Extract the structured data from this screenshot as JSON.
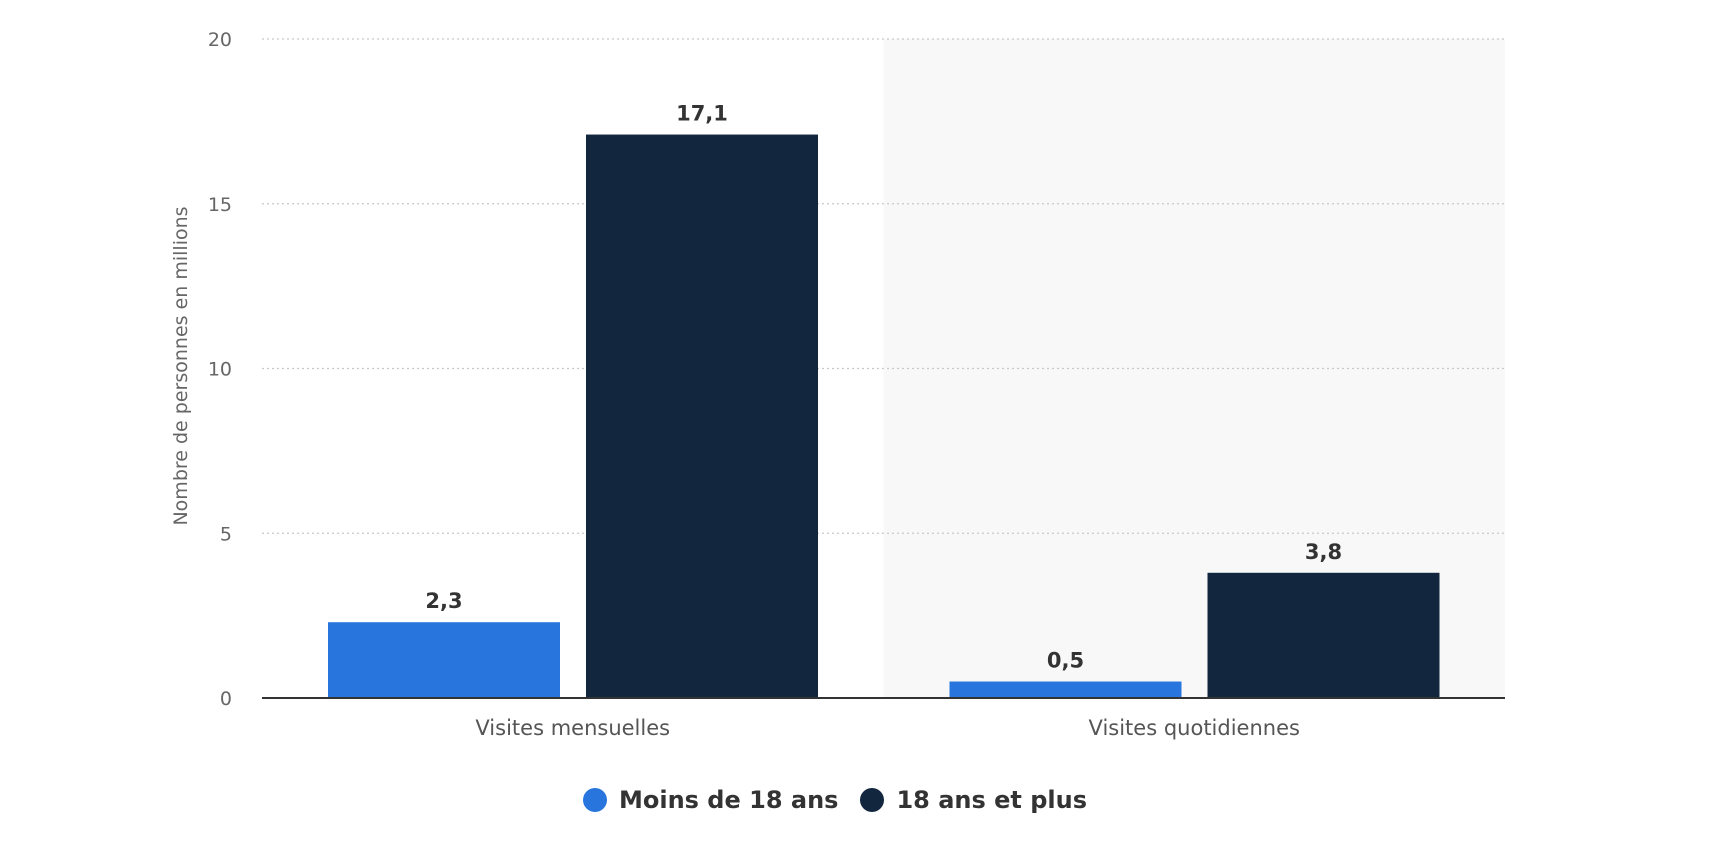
{
  "chart_data": {
    "type": "bar",
    "categories": [
      "Visites mensuelles",
      "Visites quotidiennes"
    ],
    "series": [
      {
        "name": "Moins de 18 ans",
        "values": [
          2.3,
          0.5
        ],
        "labels": [
          "2,3",
          "0,5"
        ],
        "color": "#2876dd"
      },
      {
        "name": "18 ans et plus",
        "values": [
          17.1,
          3.8
        ],
        "labels": [
          "17,1",
          "3,8"
        ],
        "color": "#12263d"
      }
    ],
    "ylabel": "Nombre de personnes en millions",
    "xlabel": "",
    "ylim": [
      0,
      20
    ],
    "yticks": [
      {
        "value": 0,
        "label": "0"
      },
      {
        "value": 5,
        "label": "5"
      },
      {
        "value": 10,
        "label": "10"
      },
      {
        "value": 15,
        "label": "15"
      },
      {
        "value": 20,
        "label": "20"
      }
    ],
    "grid": true,
    "legend": "bottom-center",
    "highlight_category_background": "#f8f8f8"
  }
}
